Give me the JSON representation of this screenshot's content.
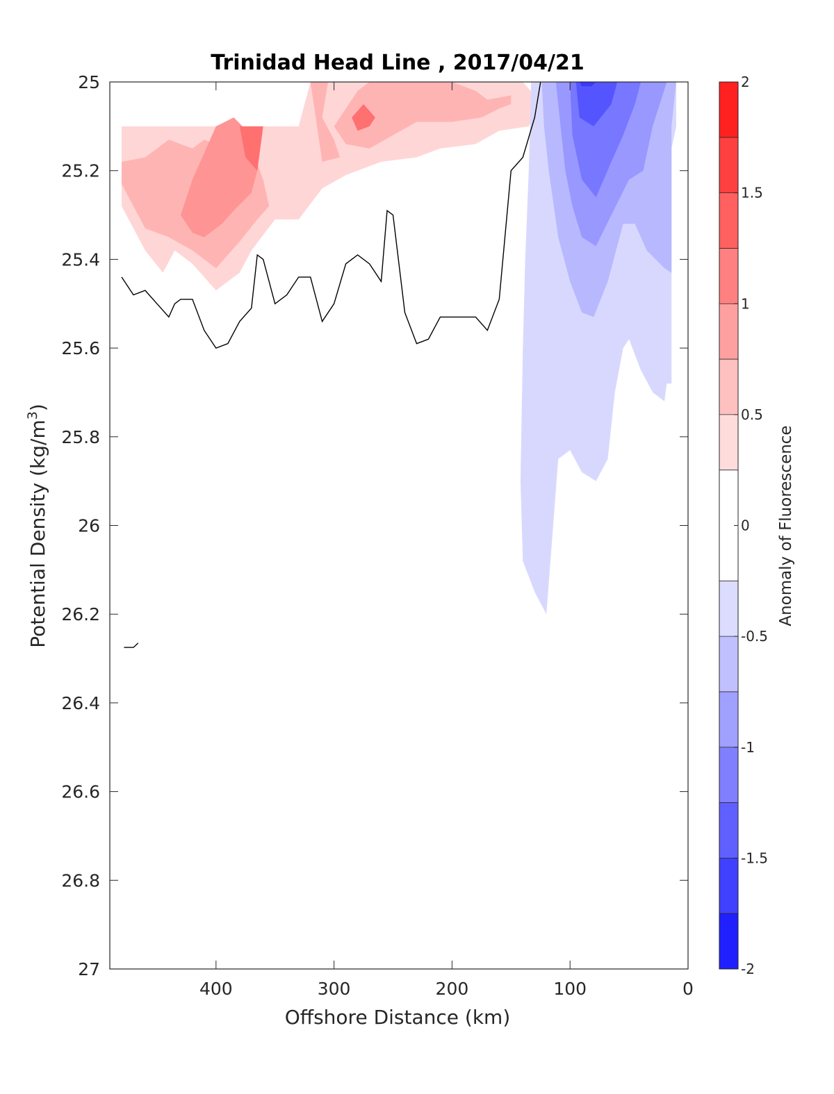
{
  "chart_data": {
    "type": "contour",
    "title": "Trinidad Head Line , 2017/04/21",
    "xlabel": "Offshore Distance (km)",
    "ylabel": "Potential Density (kg/m",
    "ylabel_superscript": "3",
    "ylabel_suffix": ")",
    "xlim": [
      490,
      0
    ],
    "ylim": [
      25,
      27
    ],
    "x_reversed": true,
    "y_reversed": true,
    "xticks": [
      400,
      300,
      200,
      100,
      0
    ],
    "xtick_labels": [
      "400",
      "300",
      "200",
      "100",
      "0"
    ],
    "yticks": [
      25,
      25.2,
      25.4,
      25.6,
      25.8,
      26,
      26.2,
      26.4,
      26.6,
      26.8,
      27
    ],
    "ytick_labels": [
      "25",
      "25.2",
      "25.4",
      "25.6",
      "25.8",
      "26",
      "26.2",
      "26.4",
      "26.6",
      "26.8",
      "27"
    ],
    "grid": false,
    "colorbar": {
      "label": "Anomaly of Fluorescence",
      "range": [
        -2,
        2
      ],
      "ticks": [
        2,
        1.5,
        1,
        0.5,
        0,
        -0.5,
        -1,
        -1.5,
        -2
      ],
      "tick_labels": [
        "2",
        "1.5",
        "1",
        "0.5",
        "0",
        "-0.5",
        "-1",
        "-1.5",
        "-2"
      ],
      "levels": [
        -2,
        -1.75,
        -1.5,
        -1.25,
        -1,
        -0.75,
        -0.5,
        -0.25,
        0.25,
        0.5,
        0.75,
        1,
        1.25,
        1.5,
        1.75,
        2
      ],
      "colors": [
        "#0000ff",
        "#2020ff",
        "#4040ff",
        "#6060ff",
        "#8080ff",
        "#a0a0ff",
        "#c0c0ff",
        "#dcdcff",
        "#ffffff",
        "#ffdcdc",
        "#ffc0c0",
        "#ffa0a0",
        "#ff8080",
        "#ff6060",
        "#ff4040",
        "#ff2020",
        "#ff0000"
      ]
    },
    "filled_regions": [
      {
        "level": 0.25,
        "color": "#ffd6d6",
        "points": [
          [
            480,
            25.1
          ],
          [
            330,
            25.1
          ],
          [
            320,
            25.0
          ],
          [
            140,
            25.0
          ],
          [
            130,
            25.03
          ],
          [
            128,
            25.05
          ],
          [
            135,
            25.1
          ],
          [
            160,
            25.11
          ],
          [
            180,
            25.14
          ],
          [
            210,
            25.15
          ],
          [
            230,
            25.17
          ],
          [
            260,
            25.18
          ],
          [
            290,
            25.21
          ],
          [
            310,
            25.24
          ],
          [
            330,
            25.31
          ],
          [
            350,
            25.31
          ],
          [
            370,
            25.38
          ],
          [
            380,
            25.43
          ],
          [
            400,
            25.47
          ],
          [
            420,
            25.41
          ],
          [
            435,
            25.38
          ],
          [
            445,
            25.43
          ],
          [
            460,
            25.38
          ],
          [
            480,
            25.28
          ]
        ]
      },
      {
        "level": 0.5,
        "color": "#ffb4b4",
        "points": [
          [
            480,
            25.18
          ],
          [
            460,
            25.17
          ],
          [
            440,
            25.13
          ],
          [
            420,
            25.15
          ],
          [
            410,
            25.13
          ],
          [
            400,
            25.14
          ],
          [
            380,
            25.13
          ],
          [
            370,
            25.15
          ],
          [
            360,
            25.22
          ],
          [
            355,
            25.28
          ],
          [
            365,
            25.31
          ],
          [
            380,
            25.36
          ],
          [
            400,
            25.42
          ],
          [
            420,
            25.38
          ],
          [
            440,
            25.35
          ],
          [
            460,
            25.33
          ],
          [
            480,
            25.23
          ]
        ]
      },
      {
        "level": 0.5,
        "color": "#ffb4b4",
        "points": [
          [
            320,
            25.0
          ],
          [
            305,
            25.0
          ],
          [
            310,
            25.08
          ],
          [
            300,
            25.13
          ],
          [
            295,
            25.17
          ],
          [
            310,
            25.18
          ]
        ]
      },
      {
        "level": 0.5,
        "color": "#ffb4b4",
        "points": [
          [
            300,
            25.1
          ],
          [
            280,
            25.02
          ],
          [
            270,
            25.0
          ],
          [
            200,
            25.0
          ],
          [
            180,
            25.02
          ],
          [
            170,
            25.04
          ],
          [
            150,
            25.03
          ],
          [
            150,
            25.05
          ],
          [
            160,
            25.06
          ],
          [
            175,
            25.08
          ],
          [
            200,
            25.09
          ],
          [
            230,
            25.09
          ],
          [
            250,
            25.12
          ],
          [
            270,
            25.15
          ],
          [
            290,
            25.14
          ]
        ]
      },
      {
        "level": 0.75,
        "color": "#ff9494",
        "points": [
          [
            400,
            25.1
          ],
          [
            410,
            25.16
          ],
          [
            420,
            25.22
          ],
          [
            430,
            25.3
          ],
          [
            420,
            25.34
          ],
          [
            410,
            25.35
          ],
          [
            395,
            25.32
          ],
          [
            385,
            25.29
          ],
          [
            370,
            25.25
          ],
          [
            365,
            25.2
          ],
          [
            370,
            25.12
          ],
          [
            385,
            25.08
          ]
        ]
      },
      {
        "level": 1.0,
        "color": "#ff7070",
        "points": [
          [
            360,
            25.1
          ],
          [
            380,
            25.1
          ],
          [
            375,
            25.17
          ],
          [
            365,
            25.2
          ]
        ]
      },
      {
        "level": 1.0,
        "color": "#ff7070",
        "points": [
          [
            285,
            25.08
          ],
          [
            275,
            25.05
          ],
          [
            265,
            25.08
          ],
          [
            270,
            25.1
          ],
          [
            280,
            25.11
          ]
        ]
      },
      {
        "level": -0.25,
        "color": "#d8d8ff",
        "points": [
          [
            133,
            25.0
          ],
          [
            10,
            25.0
          ],
          [
            10,
            25.1
          ],
          [
            14,
            25.15
          ],
          [
            14,
            25.68
          ],
          [
            18,
            25.68
          ],
          [
            20,
            25.72
          ],
          [
            30,
            25.7
          ],
          [
            40,
            25.65
          ],
          [
            50,
            25.58
          ],
          [
            55,
            25.6
          ],
          [
            62,
            25.7
          ],
          [
            68,
            25.85
          ],
          [
            78,
            25.9
          ],
          [
            90,
            25.88
          ],
          [
            100,
            25.83
          ],
          [
            110,
            25.85
          ],
          [
            120,
            26.2
          ],
          [
            130,
            26.15
          ],
          [
            140,
            26.08
          ],
          [
            142,
            25.9
          ],
          [
            140,
            25.6
          ],
          [
            138,
            25.4
          ],
          [
            135,
            25.2
          ]
        ]
      },
      {
        "level": -0.5,
        "color": "#b8b8ff",
        "points": [
          [
            124,
            25.0
          ],
          [
            10,
            25.0
          ],
          [
            14,
            25.1
          ],
          [
            14,
            25.43
          ],
          [
            20,
            25.42
          ],
          [
            35,
            25.38
          ],
          [
            45,
            25.32
          ],
          [
            55,
            25.32
          ],
          [
            68,
            25.45
          ],
          [
            80,
            25.53
          ],
          [
            90,
            25.52
          ],
          [
            100,
            25.45
          ],
          [
            110,
            25.35
          ],
          [
            118,
            25.2
          ],
          [
            122,
            25.1
          ]
        ]
      },
      {
        "level": -0.75,
        "color": "#9898ff",
        "points": [
          [
            112,
            25.0
          ],
          [
            18,
            25.0
          ],
          [
            30,
            25.1
          ],
          [
            38,
            25.2
          ],
          [
            50,
            25.22
          ],
          [
            65,
            25.3
          ],
          [
            78,
            25.37
          ],
          [
            90,
            25.35
          ],
          [
            98,
            25.28
          ],
          [
            104,
            25.2
          ],
          [
            108,
            25.1
          ]
        ]
      },
      {
        "level": -1.0,
        "color": "#7777ff",
        "points": [
          [
            100,
            25.0
          ],
          [
            40,
            25.0
          ],
          [
            45,
            25.05
          ],
          [
            55,
            25.12
          ],
          [
            65,
            25.18
          ],
          [
            78,
            25.26
          ],
          [
            90,
            25.22
          ],
          [
            98,
            25.12
          ]
        ]
      },
      {
        "level": -1.25,
        "color": "#5555ff",
        "points": [
          [
            95,
            25.0
          ],
          [
            60,
            25.0
          ],
          [
            65,
            25.05
          ],
          [
            80,
            25.1
          ],
          [
            92,
            25.08
          ]
        ]
      },
      {
        "level": -1.5,
        "color": "#3a3aff",
        "points": [
          [
            92,
            25.0
          ],
          [
            78,
            25.0
          ],
          [
            82,
            25.01
          ],
          [
            90,
            25.01
          ]
        ]
      }
    ],
    "contour_lines": [
      {
        "level": 0,
        "points": [
          [
            480,
            25.44
          ],
          [
            470,
            25.48
          ],
          [
            460,
            25.47
          ],
          [
            450,
            25.5
          ],
          [
            440,
            25.53
          ],
          [
            435,
            25.5
          ],
          [
            430,
            25.49
          ],
          [
            420,
            25.49
          ],
          [
            410,
            25.56
          ],
          [
            400,
            25.6
          ],
          [
            390,
            25.59
          ],
          [
            380,
            25.54
          ],
          [
            370,
            25.51
          ],
          [
            365,
            25.39
          ],
          [
            360,
            25.4
          ],
          [
            350,
            25.5
          ],
          [
            340,
            25.48
          ],
          [
            330,
            25.44
          ],
          [
            320,
            25.44
          ],
          [
            310,
            25.54
          ],
          [
            300,
            25.5
          ],
          [
            290,
            25.41
          ],
          [
            280,
            25.39
          ],
          [
            270,
            25.41
          ],
          [
            260,
            25.45
          ],
          [
            255,
            25.29
          ],
          [
            250,
            25.3
          ],
          [
            240,
            25.52
          ],
          [
            230,
            25.59
          ],
          [
            220,
            25.58
          ],
          [
            210,
            25.53
          ],
          [
            200,
            25.53
          ],
          [
            190,
            25.53
          ],
          [
            180,
            25.53
          ],
          [
            170,
            25.56
          ],
          [
            160,
            25.49
          ],
          [
            150,
            25.2
          ],
          [
            140,
            25.17
          ],
          [
            130,
            25.08
          ],
          [
            125,
            25.0
          ]
        ]
      },
      {
        "level": 0,
        "points": [
          [
            478,
            26.275
          ],
          [
            470,
            26.275
          ],
          [
            466,
            26.265
          ]
        ]
      }
    ]
  }
}
